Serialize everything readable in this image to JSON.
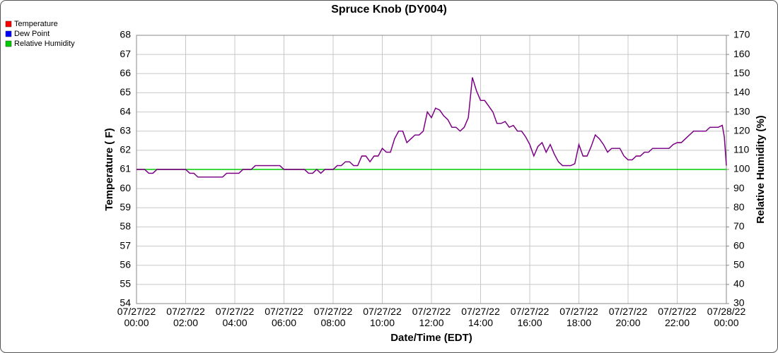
{
  "chart_data": {
    "type": "line",
    "title": "Spruce Knob (DY004)",
    "xlabel": "Date/Time (EDT)",
    "ylabel": "Temperature ( F)",
    "y2label": "Relative Humidity (%)",
    "legend": "top-left",
    "grid": true,
    "xlim": [
      "07/27/22 00:00",
      "07/28/22 00:00"
    ],
    "xticks": [
      "07/27/22 00:00",
      "07/27/22 02:00",
      "07/27/22 04:00",
      "07/27/22 06:00",
      "07/27/22 08:00",
      "07/27/22 10:00",
      "07/27/22 12:00",
      "07/27/22 14:00",
      "07/27/22 16:00",
      "07/27/22 18:00",
      "07/27/22 20:00",
      "07/27/22 22:00",
      "07/28/22 00:00"
    ],
    "ylim": [
      54,
      68
    ],
    "yticks": [
      54,
      55,
      56,
      57,
      58,
      59,
      60,
      61,
      62,
      63,
      64,
      65,
      66,
      67,
      68
    ],
    "y2lim": [
      30,
      170
    ],
    "y2ticks": [
      30,
      40,
      50,
      60,
      70,
      80,
      90,
      100,
      110,
      120,
      130,
      140,
      150,
      160,
      170
    ],
    "x": [
      "07/27/22 00:00",
      "07/27/22 00:20",
      "07/27/22 00:30",
      "07/27/22 00:40",
      "07/27/22 00:50",
      "07/27/22 02:00",
      "07/27/22 02:10",
      "07/27/22 02:20",
      "07/27/22 02:30",
      "07/27/22 03:30",
      "07/27/22 03:40",
      "07/27/22 04:10",
      "07/27/22 04:20",
      "07/27/22 04:40",
      "07/27/22 04:50",
      "07/27/22 05:50",
      "07/27/22 06:00",
      "07/27/22 06:50",
      "07/27/22 07:00",
      "07/27/22 07:10",
      "07/27/22 07:20",
      "07/27/22 07:30",
      "07/27/22 07:40",
      "07/27/22 08:00",
      "07/27/22 08:10",
      "07/27/22 08:20",
      "07/27/22 08:30",
      "07/27/22 08:40",
      "07/27/22 08:50",
      "07/27/22 09:00",
      "07/27/22 09:10",
      "07/27/22 09:20",
      "07/27/22 09:30",
      "07/27/22 09:40",
      "07/27/22 09:50",
      "07/27/22 10:00",
      "07/27/22 10:10",
      "07/27/22 10:20",
      "07/27/22 10:30",
      "07/27/22 10:40",
      "07/27/22 10:50",
      "07/27/22 11:00",
      "07/27/22 11:10",
      "07/27/22 11:20",
      "07/27/22 11:30",
      "07/27/22 11:40",
      "07/27/22 11:50",
      "07/27/22 12:00",
      "07/27/22 12:10",
      "07/27/22 12:20",
      "07/27/22 12:30",
      "07/27/22 12:40",
      "07/27/22 12:50",
      "07/27/22 13:00",
      "07/27/22 13:10",
      "07/27/22 13:20",
      "07/27/22 13:30",
      "07/27/22 13:40",
      "07/27/22 13:50",
      "07/27/22 14:00",
      "07/27/22 14:10",
      "07/27/22 14:20",
      "07/27/22 14:30",
      "07/27/22 14:40",
      "07/27/22 14:50",
      "07/27/22 15:00",
      "07/27/22 15:10",
      "07/27/22 15:20",
      "07/27/22 15:30",
      "07/27/22 15:40",
      "07/27/22 15:50",
      "07/27/22 16:00",
      "07/27/22 16:10",
      "07/27/22 16:20",
      "07/27/22 16:30",
      "07/27/22 16:40",
      "07/27/22 16:50",
      "07/27/22 17:00",
      "07/27/22 17:10",
      "07/27/22 17:20",
      "07/27/22 17:40",
      "07/27/22 17:50",
      "07/27/22 18:00",
      "07/27/22 18:10",
      "07/27/22 18:20",
      "07/27/22 18:30",
      "07/27/22 18:40",
      "07/27/22 18:50",
      "07/27/22 19:00",
      "07/27/22 19:10",
      "07/27/22 19:20",
      "07/27/22 19:40",
      "07/27/22 19:50",
      "07/27/22 20:00",
      "07/27/22 20:10",
      "07/27/22 20:20",
      "07/27/22 20:30",
      "07/27/22 20:40",
      "07/27/22 20:50",
      "07/27/22 21:00",
      "07/27/22 21:40",
      "07/27/22 21:50",
      "07/27/22 22:00",
      "07/27/22 22:10",
      "07/27/22 22:20",
      "07/27/22 22:30",
      "07/27/22 22:40",
      "07/27/22 23:10",
      "07/27/22 23:20",
      "07/27/22 23:40",
      "07/27/22 23:50",
      "07/27/22 23:55",
      "07/28/22 00:00"
    ],
    "series": [
      {
        "name": "Temperature",
        "color": "#ff0000",
        "values": [
          61,
          61,
          60.8,
          60.8,
          61,
          61,
          60.8,
          60.8,
          60.6,
          60.6,
          60.8,
          60.8,
          61,
          61,
          61.2,
          61.2,
          61,
          61,
          60.8,
          60.8,
          61,
          60.8,
          61,
          61,
          61.2,
          61.2,
          61.4,
          61.4,
          61.2,
          61.2,
          61.7,
          61.7,
          61.4,
          61.7,
          61.7,
          62.1,
          61.9,
          61.9,
          62.6,
          63,
          63,
          62.4,
          62.6,
          62.8,
          62.8,
          63,
          64,
          63.7,
          64.2,
          64.1,
          63.8,
          63.6,
          63.2,
          63.2,
          63,
          63.2,
          63.7,
          65.8,
          65.1,
          64.6,
          64.6,
          64.3,
          64,
          63.4,
          63.4,
          63.5,
          63.2,
          63.3,
          63,
          63,
          62.7,
          62.3,
          61.7,
          62.2,
          62.4,
          61.9,
          62.3,
          61.8,
          61.4,
          61.2,
          61.2,
          61.3,
          62.3,
          61.7,
          61.7,
          62.2,
          62.8,
          62.6,
          62.3,
          61.9,
          62.1,
          62.1,
          61.7,
          61.5,
          61.5,
          61.7,
          61.7,
          61.9,
          61.9,
          62.1,
          62.1,
          62.3,
          62.4,
          62.4,
          62.6,
          62.8,
          63,
          63,
          63.2,
          63.2,
          63.3,
          62.7,
          61.2
        ]
      },
      {
        "name": "Dew Point",
        "color": "#0000ff",
        "values": [
          61,
          61,
          60.8,
          60.8,
          61,
          61,
          60.8,
          60.8,
          60.6,
          60.6,
          60.8,
          60.8,
          61,
          61,
          61.2,
          61.2,
          61,
          61,
          60.8,
          60.8,
          61,
          60.8,
          61,
          61,
          61.2,
          61.2,
          61.4,
          61.4,
          61.2,
          61.2,
          61.7,
          61.7,
          61.4,
          61.7,
          61.7,
          62.1,
          61.9,
          61.9,
          62.6,
          63,
          63,
          62.4,
          62.6,
          62.8,
          62.8,
          63,
          64,
          63.7,
          64.2,
          64.1,
          63.8,
          63.6,
          63.2,
          63.2,
          63,
          63.2,
          63.7,
          65.8,
          65.1,
          64.6,
          64.6,
          64.3,
          64,
          63.4,
          63.4,
          63.5,
          63.2,
          63.3,
          63,
          63,
          62.7,
          62.3,
          61.7,
          62.2,
          62.4,
          61.9,
          62.3,
          61.8,
          61.4,
          61.2,
          61.2,
          61.3,
          62.3,
          61.7,
          61.7,
          62.2,
          62.8,
          62.6,
          62.3,
          61.9,
          62.1,
          62.1,
          61.7,
          61.5,
          61.5,
          61.7,
          61.7,
          61.9,
          61.9,
          62.1,
          62.1,
          62.3,
          62.4,
          62.4,
          62.6,
          62.8,
          63,
          63,
          63.2,
          63.2,
          63.3,
          62.7,
          61.2
        ]
      },
      {
        "name": "Relative Humidity",
        "color": "#00cc00",
        "axis": "y2",
        "x": [
          "07/27/22 00:00",
          "07/28/22 00:00"
        ],
        "values": [
          100,
          100
        ]
      }
    ]
  }
}
